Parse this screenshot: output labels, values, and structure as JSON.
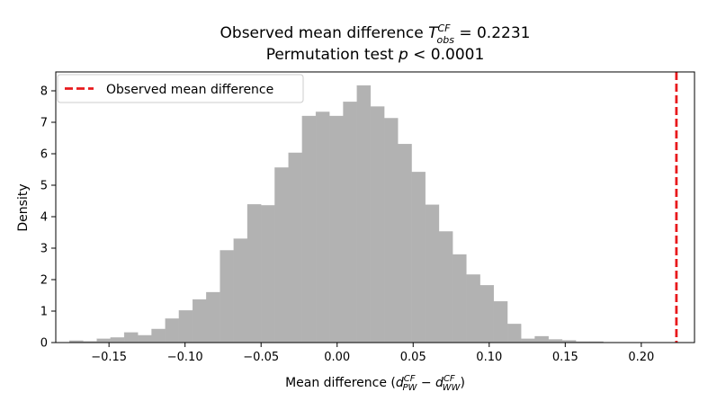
{
  "chart_data": {
    "type": "bar",
    "title": "Observed mean difference T̄ᶜᶠ₀ᵦₛ = 0.2231",
    "title_parts": {
      "prefix": "Observed mean difference ",
      "T": "T",
      "sup": "CF",
      "sub": "obs",
      "suffix": " = 0.2231"
    },
    "subtitle": "Permutation test p < 0.0001",
    "subtitle_parts": {
      "prefix": "Permutation test ",
      "italic": "p",
      "suffix": " < 0.0001"
    },
    "xlabel": "Mean difference (d̄ᶜᶠ_PW − d̄ᶜᶠ_WW)",
    "xlabel_parts": {
      "prefix": "Mean difference (",
      "d1": "d",
      "d1_sup": "CF",
      "d1_sub": "PW",
      "minus": " − ",
      "d2": "d",
      "d2_sup": "CF",
      "d2_sub": "WW",
      "suffix": ")"
    },
    "ylabel": "Density",
    "xlim": [
      -0.185,
      0.235
    ],
    "ylim": [
      0,
      8.6
    ],
    "xticks": [
      -0.15,
      -0.1,
      -0.05,
      0.0,
      0.05,
      0.1,
      0.15,
      0.2
    ],
    "xtick_labels": [
      "−0.15",
      "−0.10",
      "−0.05",
      "0.00",
      "0.05",
      "0.10",
      "0.15",
      "0.20"
    ],
    "yticks": [
      0,
      1,
      2,
      3,
      4,
      5,
      6,
      7,
      8
    ],
    "ytick_labels": [
      "0",
      "1",
      "2",
      "3",
      "4",
      "5",
      "6",
      "7",
      "8"
    ],
    "bar_color": "#b2b2b2",
    "bin_edges": [
      -0.176,
      -0.167,
      -0.158,
      -0.149,
      -0.14,
      -0.131,
      -0.122,
      -0.113,
      -0.104,
      -0.095,
      -0.086,
      -0.077,
      -0.068,
      -0.059,
      -0.05,
      -0.041,
      -0.032,
      -0.023,
      -0.014,
      -0.005,
      0.004,
      0.013,
      0.022,
      0.031,
      0.04,
      0.049,
      0.058,
      0.067,
      0.076,
      0.085,
      0.094,
      0.103,
      0.112,
      0.121,
      0.13,
      0.139,
      0.148,
      0.157,
      0.166,
      0.175
    ],
    "values": [
      0.06,
      0.04,
      0.12,
      0.16,
      0.32,
      0.23,
      0.43,
      0.76,
      1.02,
      1.37,
      1.6,
      2.93,
      3.3,
      4.39,
      4.36,
      5.56,
      6.03,
      7.2,
      7.33,
      7.2,
      7.65,
      8.17,
      7.5,
      7.13,
      6.31,
      5.42,
      4.38,
      3.53,
      2.8,
      2.16,
      1.82,
      1.31,
      0.59,
      0.12,
      0.2,
      0.1,
      0.07,
      0.03,
      0.03
    ],
    "observed_line": {
      "x": 0.2231,
      "color": "#e8191c",
      "style": "dashed",
      "label": "Observed mean difference"
    },
    "legend": {
      "placement": "upper-left",
      "entries": [
        "Observed mean difference"
      ]
    },
    "grid": false
  }
}
